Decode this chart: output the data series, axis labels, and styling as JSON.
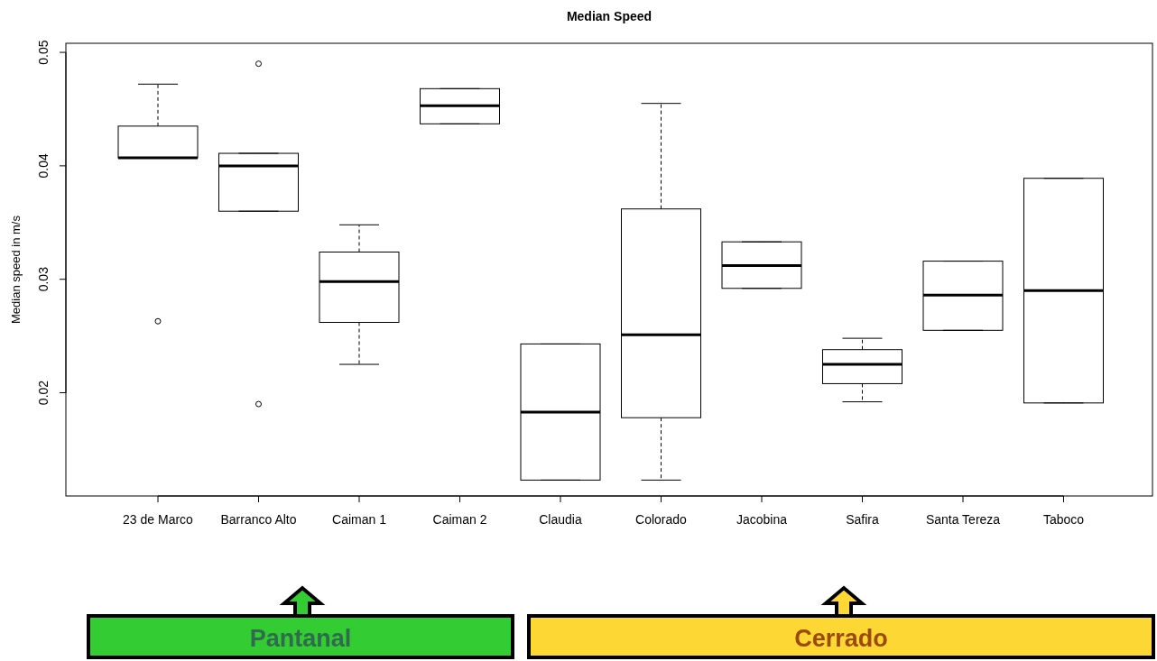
{
  "chart_data": {
    "type": "box",
    "title": "Median Speed",
    "ylabel": "Median speed in m/s",
    "categories": [
      "23 de Marco",
      "Barranco Alto",
      "Caiman 1",
      "Caiman 2",
      "Claudia",
      "Colorado",
      "Jacobina",
      "Safira",
      "Santa Tereza",
      "Taboco"
    ],
    "boxes": [
      {
        "low": 0.0407,
        "q1": 0.0407,
        "median": 0.0407,
        "q3": 0.0435,
        "high": 0.0472,
        "outliers": [
          0.0263
        ]
      },
      {
        "low": 0.036,
        "q1": 0.036,
        "median": 0.04,
        "q3": 0.0411,
        "high": 0.0411,
        "outliers": [
          0.049,
          0.019
        ]
      },
      {
        "low": 0.0225,
        "q1": 0.0262,
        "median": 0.0298,
        "q3": 0.0324,
        "high": 0.0348
      },
      {
        "low": 0.0437,
        "q1": 0.0437,
        "median": 0.0453,
        "q3": 0.0468,
        "high": 0.0468
      },
      {
        "low": 0.0123,
        "q1": 0.0123,
        "median": 0.0183,
        "q3": 0.0243,
        "high": 0.0243
      },
      {
        "low": 0.0123,
        "q1": 0.0178,
        "median": 0.0251,
        "q3": 0.0362,
        "high": 0.0455
      },
      {
        "low": 0.0292,
        "q1": 0.0292,
        "median": 0.0312,
        "q3": 0.0333,
        "high": 0.0333
      },
      {
        "low": 0.0192,
        "q1": 0.0208,
        "median": 0.0225,
        "q3": 0.0238,
        "high": 0.0248
      },
      {
        "low": 0.0255,
        "q1": 0.0255,
        "median": 0.0286,
        "q3": 0.0316,
        "high": 0.0316
      },
      {
        "low": 0.0191,
        "q1": 0.0191,
        "median": 0.029,
        "q3": 0.0389,
        "high": 0.0389
      }
    ],
    "color": "#000000",
    "ylim": [
      0.0109,
      0.0508
    ],
    "yticks": [
      0.02,
      0.03,
      0.04,
      0.05
    ],
    "grid": false,
    "annotations": [
      "Pantanal",
      "Cerrado"
    ]
  }
}
